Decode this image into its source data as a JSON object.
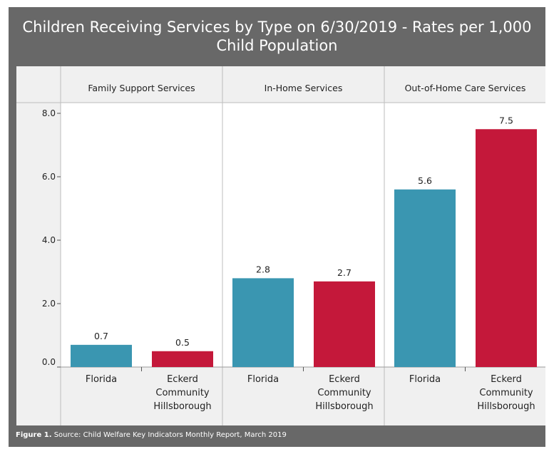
{
  "title": "Children Receiving Services by Type on 6/30/2019 - Rates per 1,000 Child Population",
  "footer": {
    "figure_label": "Figure 1.",
    "source_text": "Source:  Child Welfare Key Indicators Monthly Report, March 2019"
  },
  "colors": {
    "florida": "#3a96b1",
    "eckerd": "#c4183a",
    "frame": "#686868",
    "plot_background": "#ffffff",
    "strip_background": "#f0f0f0"
  },
  "chart_data": {
    "type": "bar",
    "title": "Children Receiving Services by Type on 6/30/2019 - Rates per 1,000 Child Population",
    "ylim": [
      0,
      8
    ],
    "yticks": [
      "0.0",
      "2.0",
      "4.0",
      "6.0",
      "8.0"
    ],
    "ytick_values": [
      0,
      2,
      4,
      6,
      8
    ],
    "grid": false,
    "facets": [
      {
        "name": "Family Support Services",
        "categories": [
          "Florida",
          "Eckerd Community Hillsborough"
        ],
        "values": [
          0.7,
          0.5
        ],
        "labels": [
          "0.7",
          "0.5"
        ]
      },
      {
        "name": "In-Home Services",
        "categories": [
          "Florida",
          "Eckerd Community Hillsborough"
        ],
        "values": [
          2.8,
          2.7
        ],
        "labels": [
          "2.8",
          "2.7"
        ]
      },
      {
        "name": "Out-of-Home Care Services",
        "categories": [
          "Florida",
          "Eckerd Community Hillsborough"
        ],
        "values": [
          5.6,
          7.5
        ],
        "labels": [
          "5.6",
          "7.5"
        ]
      }
    ],
    "category_lines": [
      [
        "Florida"
      ],
      [
        "Eckerd",
        "Community",
        "Hillsborough"
      ]
    ]
  }
}
